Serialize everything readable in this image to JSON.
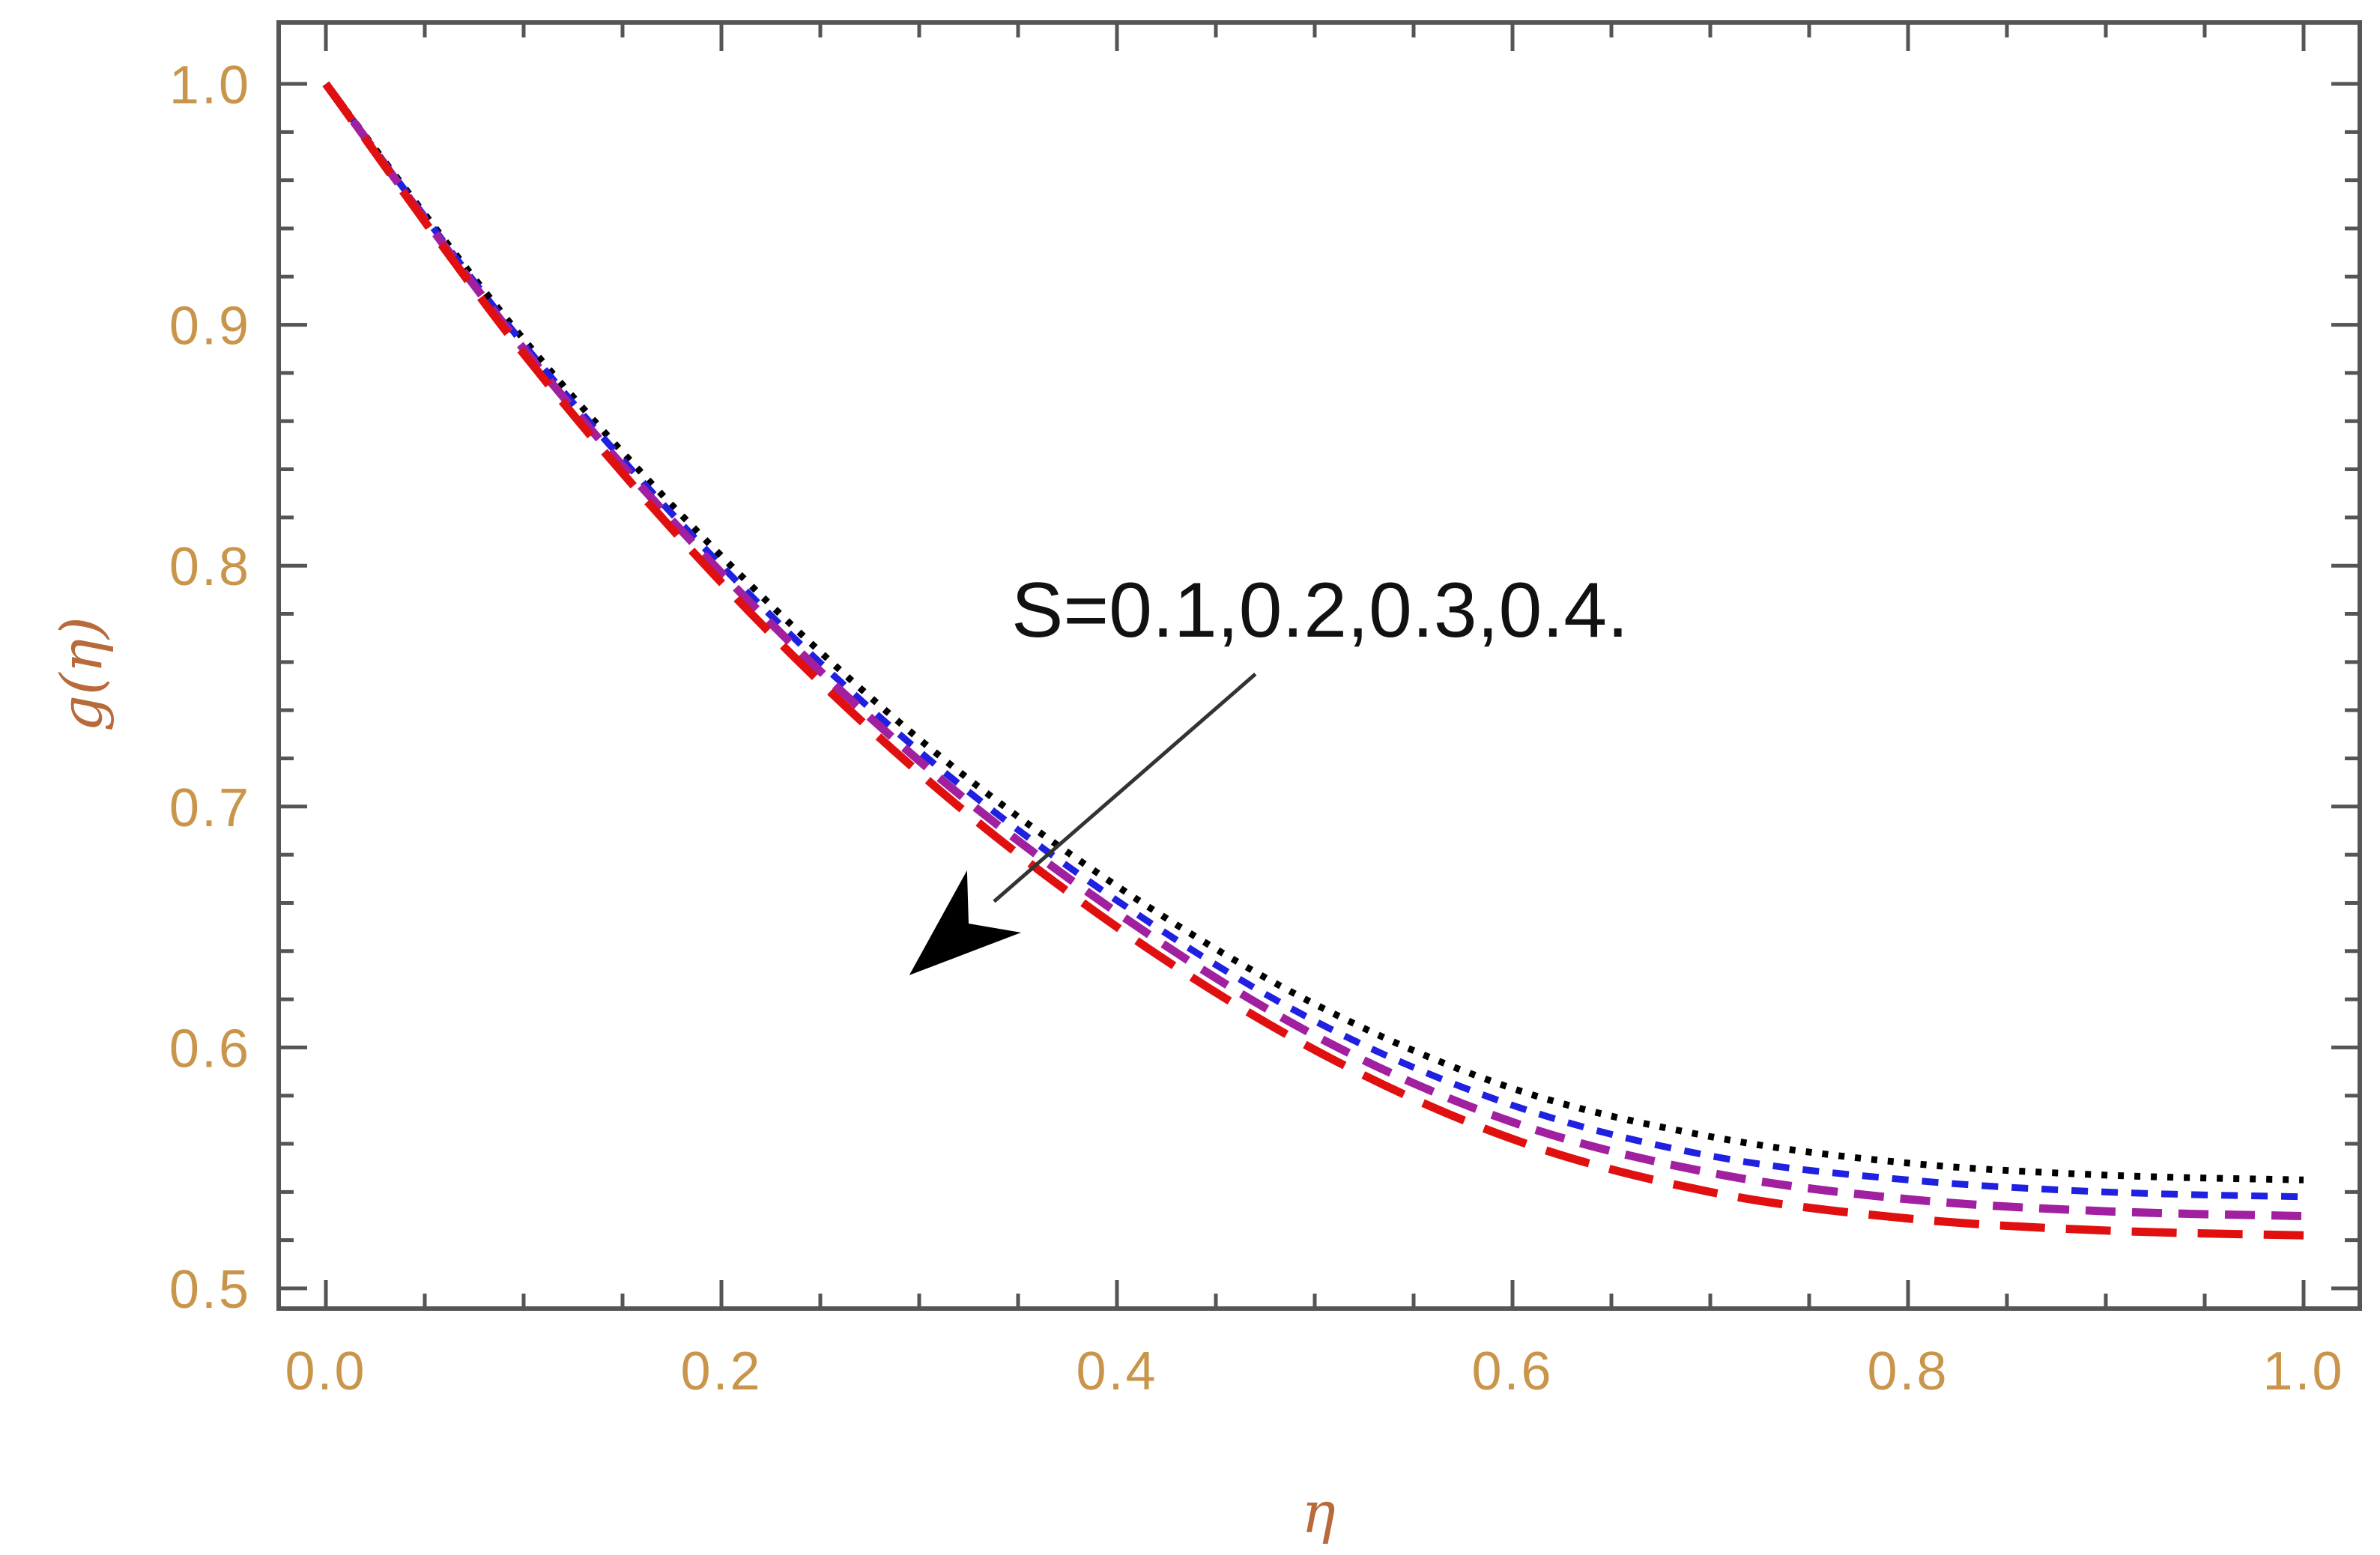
{
  "chart_data": {
    "type": "line",
    "xlabel": "η",
    "ylabel": "g(η)",
    "xlim": [
      0.0,
      1.0
    ],
    "ylim": [
      0.5,
      1.0
    ],
    "x_ticks": [
      0.0,
      0.2,
      0.4,
      0.6,
      0.8,
      1.0
    ],
    "x_tick_labels": [
      "0.0",
      "0.2",
      "0.4",
      "0.6",
      "0.8",
      "1.0"
    ],
    "y_ticks": [
      0.5,
      0.6,
      0.7,
      0.8,
      0.9,
      1.0
    ],
    "y_tick_labels": [
      "0.5",
      "0.6",
      "0.7",
      "0.8",
      "0.9",
      "1.0"
    ],
    "grid": false,
    "annotation": {
      "text": "S=0.1,0.2,0.3,0.4.",
      "arrow_from": [
        0.47,
        0.755
      ],
      "arrow_to": [
        0.295,
        0.63
      ]
    },
    "x": [
      0.0,
      0.1,
      0.2,
      0.3,
      0.4,
      0.5,
      0.6,
      0.7,
      0.8,
      0.9,
      1.0
    ],
    "series": [
      {
        "color": "#000000",
        "dash": "dot",
        "values": [
          1.0,
          0.894,
          0.804,
          0.728,
          0.667,
          0.618,
          0.583,
          0.563,
          0.552,
          0.547,
          0.545
        ]
      },
      {
        "color": "#2020e0",
        "dash": "short-dash",
        "values": [
          1.0,
          0.892,
          0.8,
          0.723,
          0.661,
          0.611,
          0.576,
          0.555,
          0.545,
          0.54,
          0.538
        ]
      },
      {
        "color": "#a020a0",
        "dash": "dash",
        "values": [
          1.0,
          0.89,
          0.797,
          0.719,
          0.656,
          0.605,
          0.569,
          0.548,
          0.537,
          0.532,
          0.53
        ]
      },
      {
        "color": "#e01010",
        "dash": "long-dash",
        "values": [
          1.0,
          0.888,
          0.793,
          0.714,
          0.65,
          0.599,
          0.562,
          0.54,
          0.529,
          0.524,
          0.522
        ]
      }
    ]
  }
}
